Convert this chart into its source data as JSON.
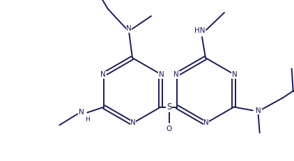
{
  "bg_color": "#ffffff",
  "bond_color": "#1a1a5e",
  "text_color": "#1a1a5e",
  "line_width": 1.4,
  "font_size": 7.5,
  "fig_width": 4.22,
  "fig_height": 2.31,
  "dpi": 100,
  "xlim": [
    0,
    422
  ],
  "ylim": [
    0,
    231
  ]
}
